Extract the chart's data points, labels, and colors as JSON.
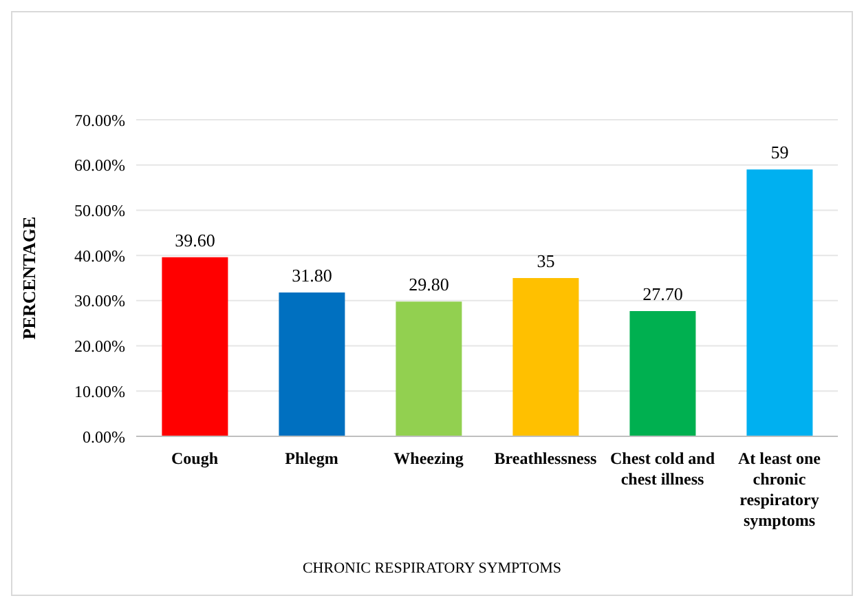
{
  "chart_data": {
    "type": "bar",
    "xlabel": "CHRONIC RESPIRATORY SYMPTOMS",
    "ylabel": "PERCENTAGE",
    "categories": [
      "Cough",
      "Phlegm",
      "Wheezing",
      "Breathlessness",
      "Chest cold and chest illness",
      "At least one chronic respiratory symptoms"
    ],
    "values": [
      39.6,
      31.8,
      29.8,
      35,
      27.7,
      59
    ],
    "value_labels": [
      "39.60",
      "31.80",
      "29.80",
      "35",
      "27.70",
      "59"
    ],
    "colors": [
      "#ff0000",
      "#0070c0",
      "#92d050",
      "#ffc000",
      "#00b050",
      "#00b0f0"
    ],
    "ylim": [
      0,
      70
    ],
    "yticks": [
      {
        "value": 0,
        "label": "0.00%"
      },
      {
        "value": 10,
        "label": "10.00%"
      },
      {
        "value": 20,
        "label": "20.00%"
      },
      {
        "value": 30,
        "label": "30.00%"
      },
      {
        "value": 40,
        "label": "40.00%"
      },
      {
        "value": 50,
        "label": "50.00%"
      },
      {
        "value": 60,
        "label": "60.00%"
      },
      {
        "value": 70,
        "label": "70.00%"
      }
    ],
    "grid": "y"
  }
}
